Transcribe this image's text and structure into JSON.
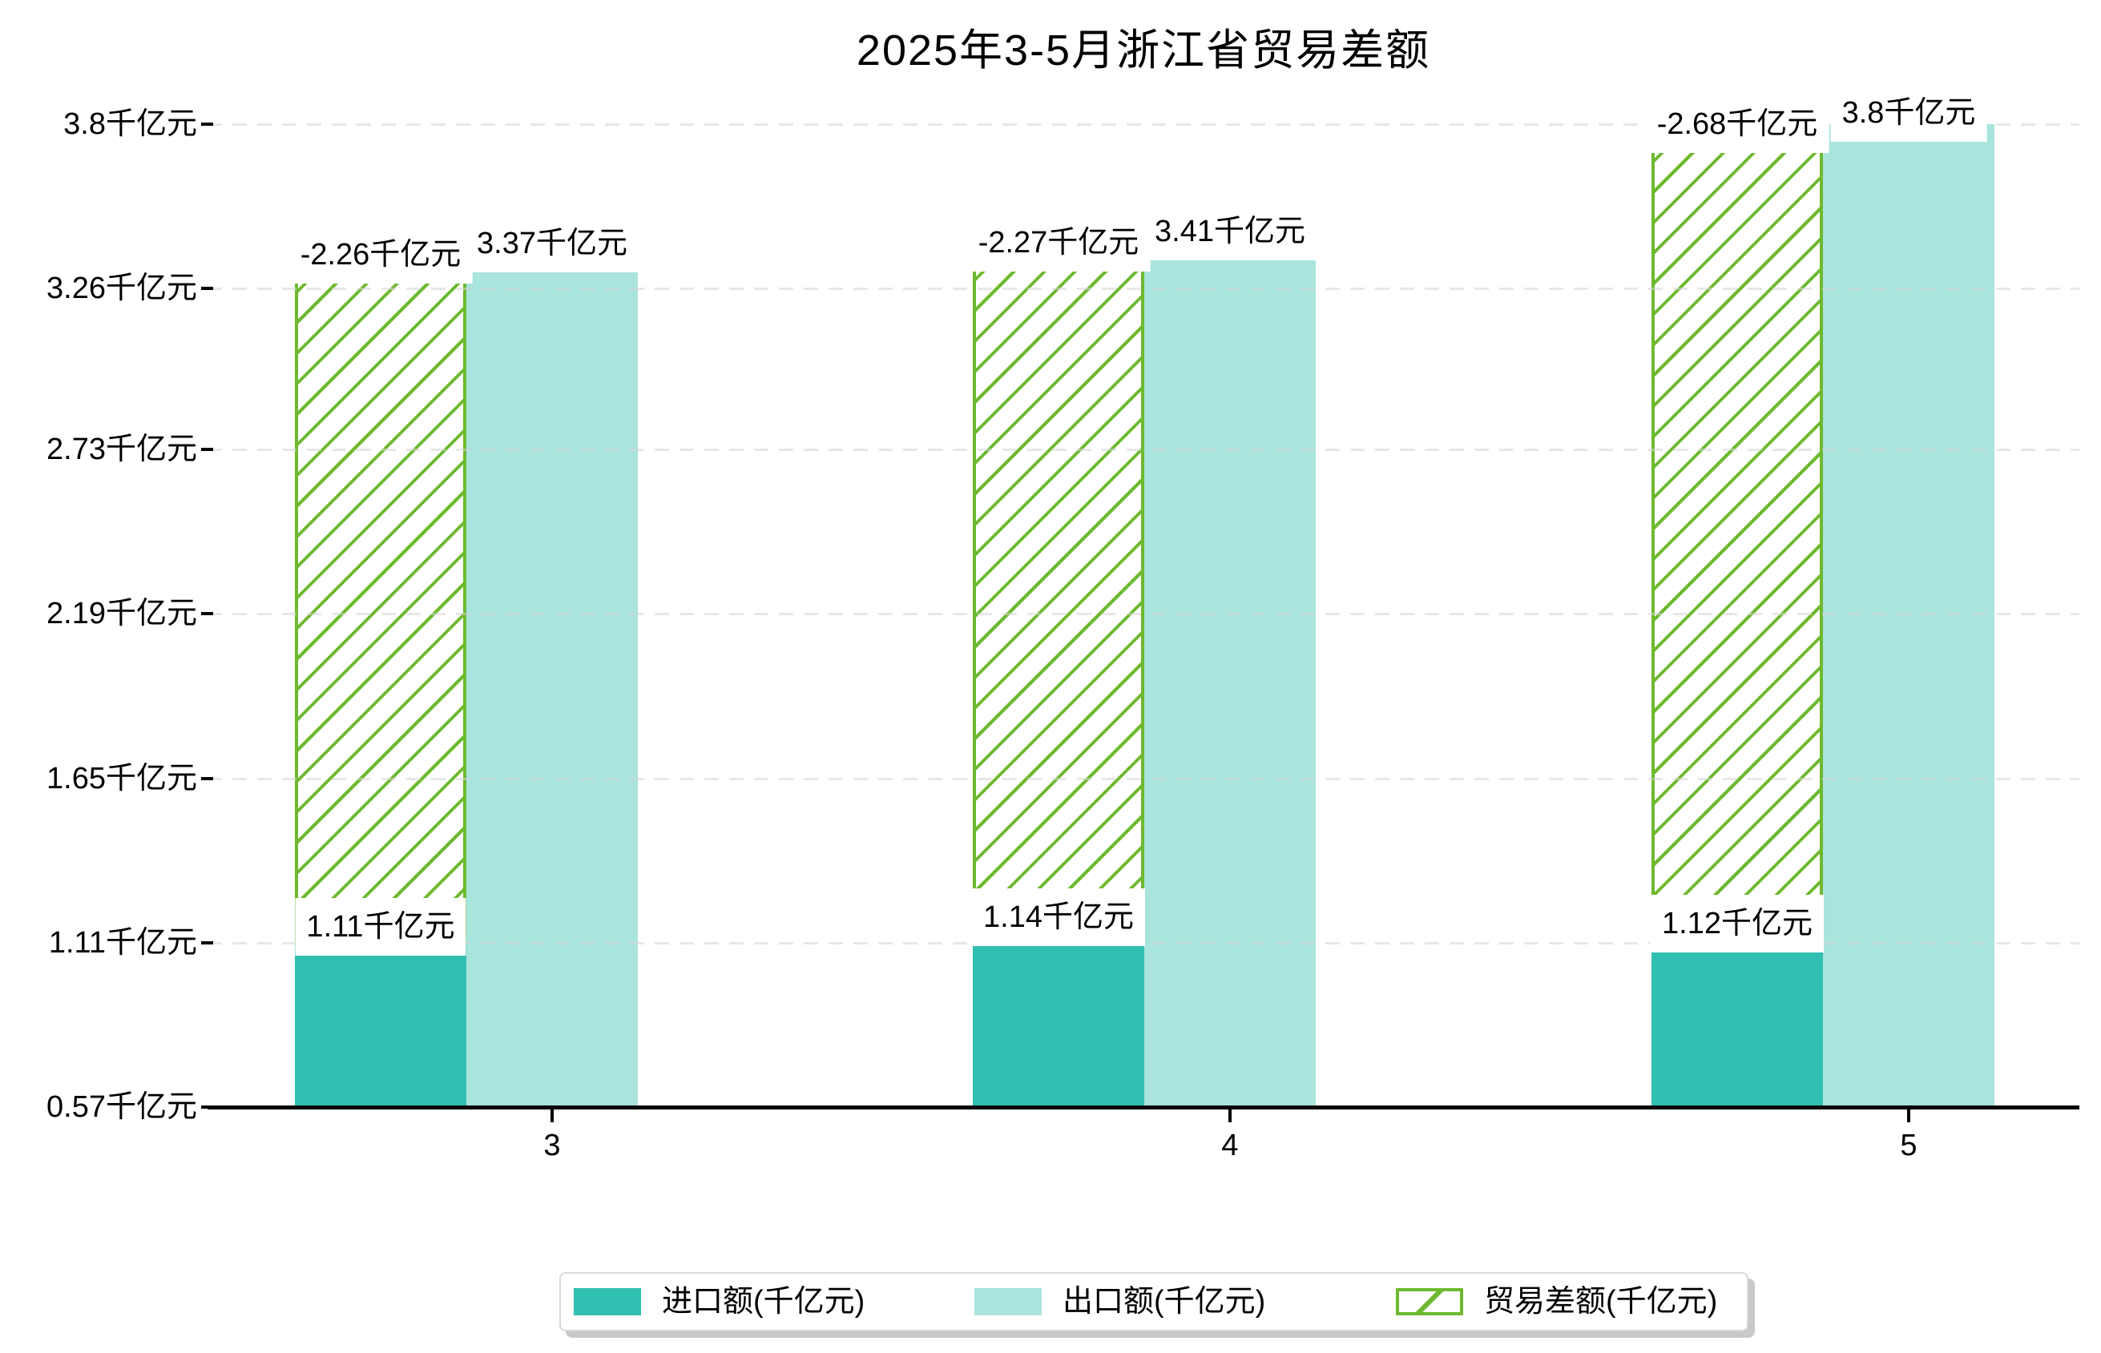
{
  "title": "2025年3-5月浙江省贸易差额",
  "chart_data": {
    "type": "bar",
    "title": "2025年3-5月浙江省贸易差额",
    "categories": [
      "3",
      "4",
      "5"
    ],
    "series": [
      {
        "name": "进口额(千亿元)",
        "role": "imports",
        "values": [
          1.11,
          1.14,
          1.12
        ],
        "data_labels": [
          "1.11千亿元",
          "1.14千亿元",
          "1.12千亿元"
        ],
        "color": "#31bfb1"
      },
      {
        "name": "出口额(千亿元)",
        "role": "exports",
        "values": [
          3.37,
          3.41,
          3.8
        ],
        "data_labels": [
          "3.37千亿元",
          "3.41千亿元",
          "3.8千亿元"
        ],
        "color": "#a9e4dd"
      },
      {
        "name": "贸易差额(千亿元)",
        "role": "trade-balance",
        "values": [
          -2.26,
          -2.27,
          -2.68
        ],
        "data_labels": [
          "-2.26千亿元",
          "-2.27千亿元",
          "-2.68千亿元"
        ],
        "color": "#6eb92f",
        "hatch": "/",
        "bar_spans": [
          [
            1.11,
            3.37
          ],
          [
            1.14,
            3.41
          ],
          [
            1.12,
            3.8
          ]
        ]
      }
    ],
    "ylim": [
      0.57,
      3.8
    ],
    "yticks": [
      0.57,
      1.11,
      1.65,
      2.19,
      2.73,
      3.26,
      3.8
    ],
    "ytick_labels": [
      "0.57千亿元",
      "1.11千亿元",
      "1.65千亿元",
      "2.19千亿元",
      "2.73千亿元",
      "3.26千亿元",
      "3.8千亿元"
    ],
    "grid": true,
    "grid_style": "dashed",
    "legend_position": "bottom center"
  },
  "legend": {
    "items": [
      {
        "label": "进口额(千亿元)",
        "swatch": "solid-teal"
      },
      {
        "label": "出口额(千亿元)",
        "swatch": "solid-light-teal"
      },
      {
        "label": "贸易差额(千亿元)",
        "swatch": "green-hatched"
      }
    ]
  },
  "colors": {
    "imports_bar": "#31bfb1",
    "exports_bar": "#a9e4dd",
    "balance_hatch": "#6eb92f",
    "axis": "#000000",
    "gridline": "#e3e3e3",
    "background": "#ffffff",
    "label_box_bg": "#ffffff"
  }
}
